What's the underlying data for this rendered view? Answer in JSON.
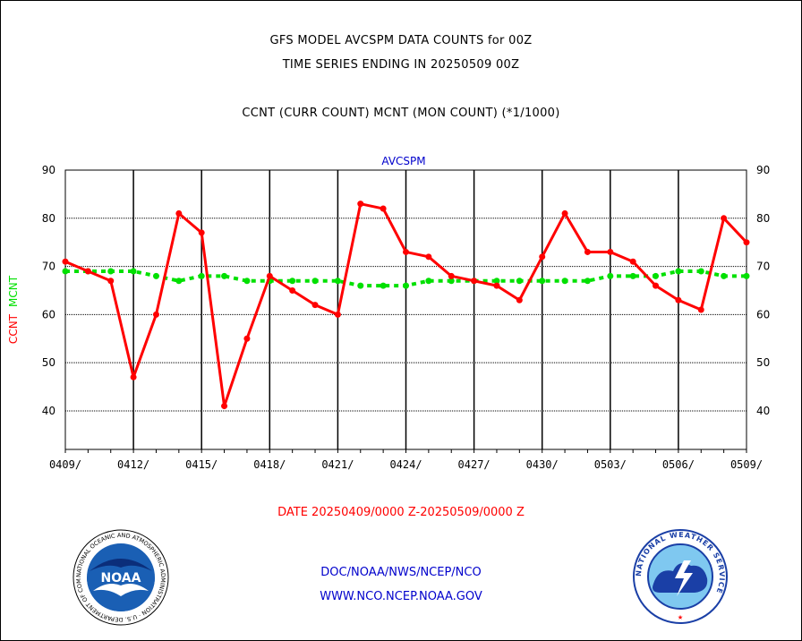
{
  "header": {
    "title_line1": "GFS MODEL AVCSPM DATA COUNTS for 00Z",
    "title_line2": "TIME SERIES ENDING IN 20250509 00Z",
    "subtitle": "CCNT (CURR COUNT) MCNT (MON COUNT) (*1/1000)"
  },
  "footer": {
    "date_range": "DATE 20250409/0000 Z-20250509/0000 Z",
    "credit": "DOC/NOAA/NWS/NCEP/NCO",
    "website": "WWW.NCO.NCEP.NOAA.GOV"
  },
  "logos": {
    "noaa_text": "NOAA",
    "noaa_ring": "NATIONAL OCEANIC AND ATMOSPHERIC ADMINISTRATION · U.S. DEPARTMENT OF COMMERCE",
    "nws_ring": "NATIONAL WEATHER SERVICE"
  },
  "colors": {
    "ccnt": "#ff0000",
    "mcnt": "#00e000",
    "panel_title": "#0000cc",
    "footer_date": "#ff0000",
    "footer_text": "#0000cc"
  },
  "chart_data": {
    "type": "line",
    "panel_title": "AVCSPM",
    "ylabel_left_ccnt": "CCNT",
    "ylabel_left_mcnt": "MCNT",
    "ylim": [
      32,
      90
    ],
    "yticks": [
      40,
      50,
      60,
      70,
      80,
      90
    ],
    "x_day_range": [
      0,
      30
    ],
    "xtick_labels": [
      "0409/",
      "0412/",
      "0415/",
      "0418/",
      "0421/",
      "0424/",
      "0427/",
      "0430/",
      "0503/",
      "0506/",
      "0509/"
    ],
    "xtick_days": [
      0,
      3,
      6,
      9,
      12,
      15,
      18,
      21,
      24,
      27,
      30
    ],
    "grid": true,
    "series": [
      {
        "name": "CCNT",
        "color": "#ff0000",
        "style": "solid",
        "x": [
          0,
          1,
          2,
          3,
          4,
          5,
          6,
          7,
          8,
          9,
          10,
          11,
          12,
          13,
          14,
          15,
          16,
          17,
          18,
          19,
          20,
          21,
          22,
          23,
          24,
          25,
          26,
          27,
          28,
          29,
          30
        ],
        "values": [
          71,
          69,
          67,
          47,
          60,
          81,
          77,
          41,
          55,
          68,
          65,
          62,
          60,
          83,
          82,
          73,
          72,
          68,
          67,
          66,
          63,
          72,
          81,
          73,
          73,
          71,
          66,
          63,
          61,
          80,
          75
        ]
      },
      {
        "name": "MCNT",
        "color": "#00e000",
        "style": "dashed",
        "x": [
          0,
          1,
          2,
          3,
          4,
          5,
          6,
          7,
          8,
          9,
          10,
          11,
          12,
          13,
          14,
          15,
          16,
          17,
          18,
          19,
          20,
          21,
          22,
          23,
          24,
          25,
          26,
          27,
          28,
          29,
          30
        ],
        "values": [
          69,
          69,
          69,
          69,
          68,
          67,
          68,
          68,
          67,
          67,
          67,
          67,
          67,
          66,
          66,
          66,
          67,
          67,
          67,
          67,
          67,
          67,
          67,
          67,
          68,
          68,
          68,
          69,
          69,
          68,
          68
        ]
      }
    ]
  }
}
